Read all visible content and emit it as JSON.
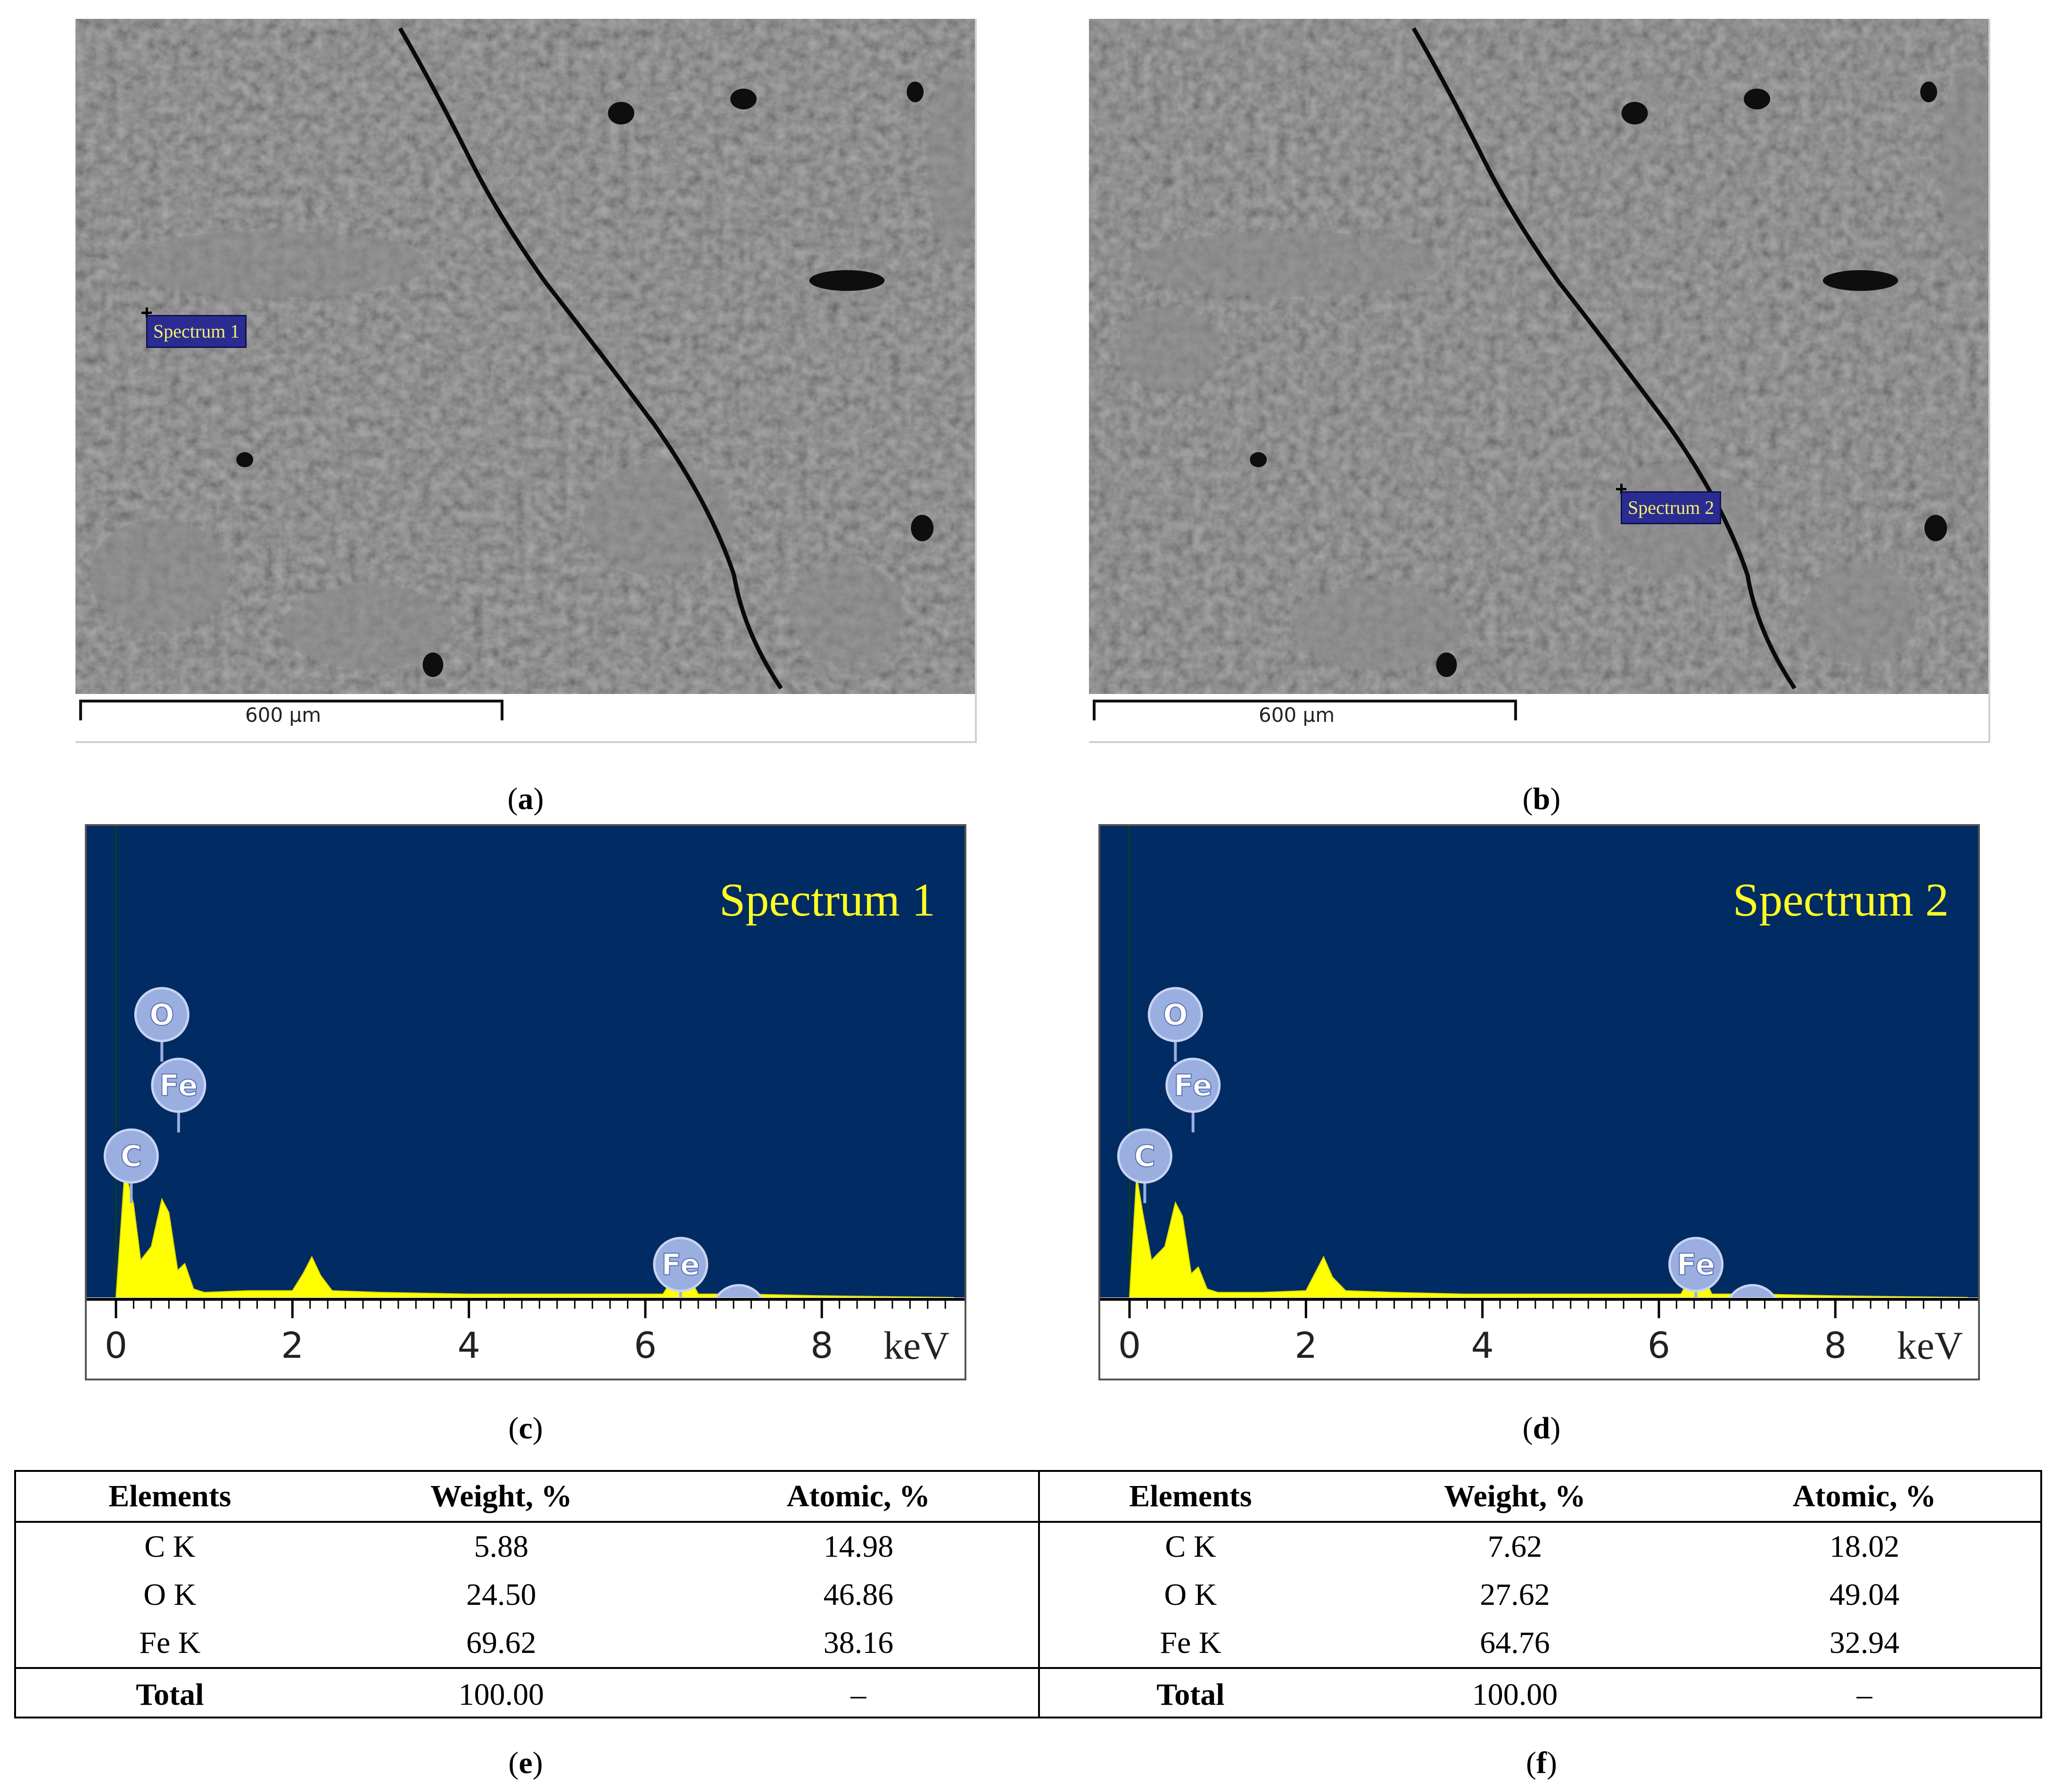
{
  "panels": {
    "a": {
      "caption_letter": "a",
      "scale_label": "600 μm",
      "spectrum_tag": "Spectrum 1"
    },
    "b": {
      "caption_letter": "b",
      "scale_label": "600 μm",
      "spectrum_tag": "Spectrum 2"
    },
    "c": {
      "caption_letter": "c"
    },
    "d": {
      "caption_letter": "d"
    },
    "e": {
      "caption_letter": "e"
    },
    "f": {
      "caption_letter": "f"
    }
  },
  "colors": {
    "eds_background": "#002b63",
    "spectrum_fill": "#ffff00",
    "spectrum_title": "#ffff22",
    "peak_marker": "#9aaee0"
  },
  "chart_data": [
    {
      "type": "area",
      "title": "Spectrum 1",
      "xlabel": "keV",
      "xlim": [
        0,
        9.5
      ],
      "ticks": [
        "0",
        "2",
        "4",
        "6",
        "8"
      ],
      "tick_values": [
        0,
        2,
        4,
        6,
        8
      ],
      "x": [
        0.0,
        0.1,
        0.2,
        0.28,
        0.4,
        0.52,
        0.6,
        0.7,
        0.78,
        0.88,
        1.0,
        1.5,
        2.0,
        2.12,
        2.22,
        2.32,
        2.45,
        3.0,
        4.0,
        6.2,
        6.32,
        6.4,
        6.48,
        6.6,
        7.0,
        7.05,
        7.12,
        8.0,
        9.5
      ],
      "y": [
        0,
        75,
        55,
        22,
        30,
        58,
        50,
        16,
        20,
        5,
        3,
        4,
        4,
        14,
        24,
        13,
        4,
        3,
        2,
        2,
        12,
        30,
        14,
        2,
        2,
        6,
        2,
        1,
        0
      ],
      "peaks": [
        {
          "label": "O",
          "x": 0.52
        },
        {
          "label": "Fe",
          "x": 0.71
        },
        {
          "label": "C",
          "x": 0.28
        },
        {
          "label": "Fe",
          "x": 6.4
        },
        {
          "label": "Fe",
          "x": 7.06
        }
      ]
    },
    {
      "type": "area",
      "title": "Spectrum 2",
      "xlabel": "keV",
      "xlim": [
        0,
        9.5
      ],
      "ticks": [
        "0",
        "2",
        "4",
        "6",
        "8"
      ],
      "tick_values": [
        0,
        2,
        4,
        6,
        8
      ],
      "x": [
        0.0,
        0.08,
        0.15,
        0.25,
        0.4,
        0.52,
        0.6,
        0.7,
        0.78,
        0.88,
        1.0,
        1.5,
        2.0,
        2.1,
        2.2,
        2.3,
        2.45,
        3.0,
        3.8,
        6.25,
        6.35,
        6.42,
        6.5,
        6.6,
        7.0,
        7.06,
        7.12,
        8.0,
        9.5
      ],
      "y": [
        0,
        72,
        50,
        22,
        30,
        56,
        48,
        14,
        18,
        5,
        3,
        3,
        4,
        14,
        24,
        12,
        4,
        3,
        2,
        2,
        12,
        26,
        14,
        2,
        2,
        5,
        2,
        1,
        0
      ],
      "peaks": [
        {
          "label": "O",
          "x": 0.52
        },
        {
          "label": "Fe",
          "x": 0.72
        },
        {
          "label": "C",
          "x": 0.28
        },
        {
          "label": "Fe",
          "x": 6.42
        },
        {
          "label": "Fe",
          "x": 7.06
        }
      ]
    },
    {
      "type": "table",
      "headers": [
        "Elements",
        "Weight, %",
        "Atomic, %"
      ],
      "rows": [
        [
          "C K",
          "5.88",
          "14.98"
        ],
        [
          "O K",
          "24.50",
          "46.86"
        ],
        [
          "Fe K",
          "69.62",
          "38.16"
        ]
      ],
      "total": [
        "Total",
        "100.00",
        "–"
      ]
    },
    {
      "type": "table",
      "headers": [
        "Elements",
        "Weight, %",
        "Atomic, %"
      ],
      "rows": [
        [
          "C K",
          "7.62",
          "18.02"
        ],
        [
          "O K",
          "27.62",
          "49.04"
        ],
        [
          "Fe K",
          "64.76",
          "32.94"
        ]
      ],
      "total": [
        "Total",
        "100.00",
        "–"
      ]
    }
  ]
}
